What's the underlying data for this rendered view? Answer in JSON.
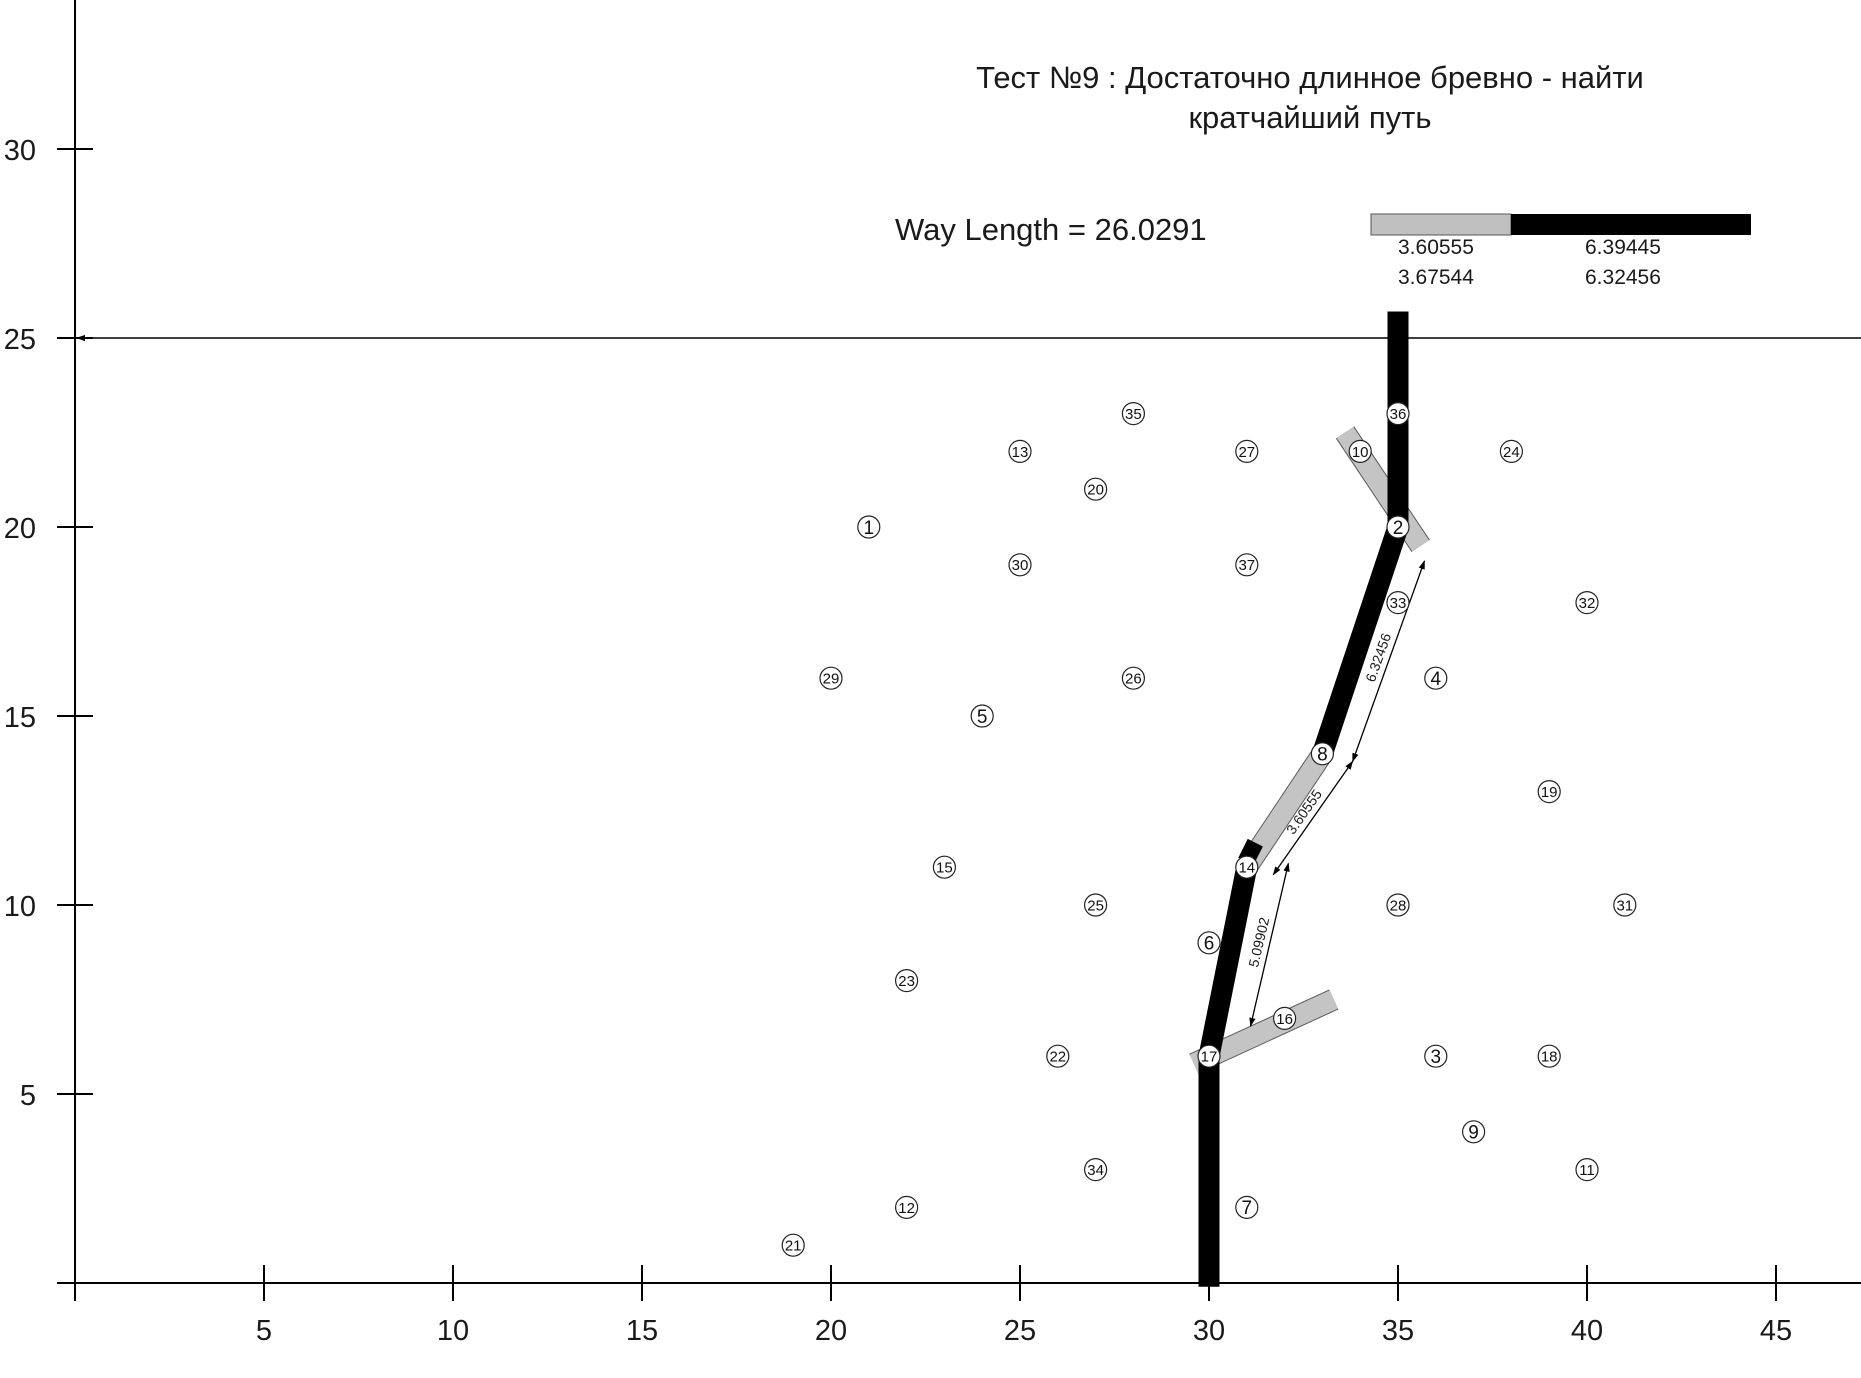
{
  "title_line1": "Тест №9 : Достаточно длинное бревно - найти",
  "title_line2": "кратчайший путь",
  "way_length_label": "Way Length = 26.0291",
  "legend": {
    "swatch_gray_color": "#c0c0c0",
    "swatch_black_color": "#000000",
    "values": [
      [
        "3.60555",
        "6.39445"
      ],
      [
        "3.67544",
        "6.32456"
      ]
    ]
  },
  "chart_data": {
    "type": "diagram",
    "xlim": [
      0,
      47
    ],
    "ylim": [
      0,
      34
    ],
    "x_ticks": [
      5,
      10,
      15,
      20,
      25,
      30,
      35,
      40,
      45
    ],
    "y_ticks": [
      5,
      10,
      15,
      20,
      25,
      30
    ],
    "target_line_y": 25,
    "points": [
      {
        "label": "1",
        "x": 21,
        "y": 20
      },
      {
        "label": "2",
        "x": 35,
        "y": 20
      },
      {
        "label": "3",
        "x": 36,
        "y": 6
      },
      {
        "label": "4",
        "x": 36,
        "y": 16
      },
      {
        "label": "5",
        "x": 24,
        "y": 15
      },
      {
        "label": "6",
        "x": 30,
        "y": 9
      },
      {
        "label": "7",
        "x": 31,
        "y": 2
      },
      {
        "label": "8",
        "x": 33,
        "y": 14
      },
      {
        "label": "9",
        "x": 37,
        "y": 4
      },
      {
        "label": "10",
        "x": 34,
        "y": 22
      },
      {
        "label": "11",
        "x": 40,
        "y": 3
      },
      {
        "label": "12",
        "x": 22,
        "y": 2
      },
      {
        "label": "13",
        "x": 25,
        "y": 22
      },
      {
        "label": "14",
        "x": 31,
        "y": 11
      },
      {
        "label": "15",
        "x": 23,
        "y": 11
      },
      {
        "label": "16",
        "x": 32,
        "y": 7
      },
      {
        "label": "17",
        "x": 30,
        "y": 6
      },
      {
        "label": "18",
        "x": 39,
        "y": 6
      },
      {
        "label": "19",
        "x": 39,
        "y": 13
      },
      {
        "label": "20",
        "x": 27,
        "y": 21
      },
      {
        "label": "21",
        "x": 19,
        "y": 1
      },
      {
        "label": "22",
        "x": 26,
        "y": 6
      },
      {
        "label": "23",
        "x": 22,
        "y": 8
      },
      {
        "label": "24",
        "x": 38,
        "y": 22
      },
      {
        "label": "25",
        "x": 27,
        "y": 10
      },
      {
        "label": "26",
        "x": 28,
        "y": 16
      },
      {
        "label": "27",
        "x": 31,
        "y": 22
      },
      {
        "label": "28",
        "x": 35,
        "y": 10
      },
      {
        "label": "29",
        "x": 20,
        "y": 16
      },
      {
        "label": "30",
        "x": 25,
        "y": 19
      },
      {
        "label": "31",
        "x": 41,
        "y": 10
      },
      {
        "label": "32",
        "x": 40,
        "y": 18
      },
      {
        "label": "33",
        "x": 35,
        "y": 18
      },
      {
        "label": "34",
        "x": 27,
        "y": 3
      },
      {
        "label": "35",
        "x": 28,
        "y": 23
      },
      {
        "label": "36",
        "x": 35,
        "y": 23
      },
      {
        "label": "37",
        "x": 31,
        "y": 19
      }
    ],
    "path_black": [
      [
        [
          30,
          -0.1
        ],
        [
          30,
          6
        ]
      ],
      [
        [
          30,
          6
        ],
        [
          31,
          11
        ]
      ],
      [
        [
          30.9,
          11.5
        ],
        [
          31.3,
          11.3
        ]
      ],
      [
        [
          33,
          14
        ],
        [
          35,
          20
        ]
      ],
      [
        [
          35,
          20
        ],
        [
          35,
          25.7
        ]
      ]
    ],
    "logs_gray": [
      [
        [
          29.6,
          5.8
        ],
        [
          33.3,
          7.5
        ]
      ],
      [
        [
          31,
          11
        ],
        [
          33,
          14
        ]
      ],
      [
        [
          33.6,
          22.5
        ],
        [
          35.6,
          19.5
        ]
      ]
    ],
    "dimensions": [
      {
        "label": "5.09902",
        "from": [
          31.1,
          6.8
        ],
        "to": [
          32.1,
          11.1
        ]
      },
      {
        "label": "3.60555",
        "from": [
          31.7,
          10.8
        ],
        "to": [
          33.8,
          13.8
        ]
      },
      {
        "label": "6.32456",
        "from": [
          33.8,
          13.8
        ],
        "to": [
          35.7,
          19.1
        ]
      }
    ]
  }
}
